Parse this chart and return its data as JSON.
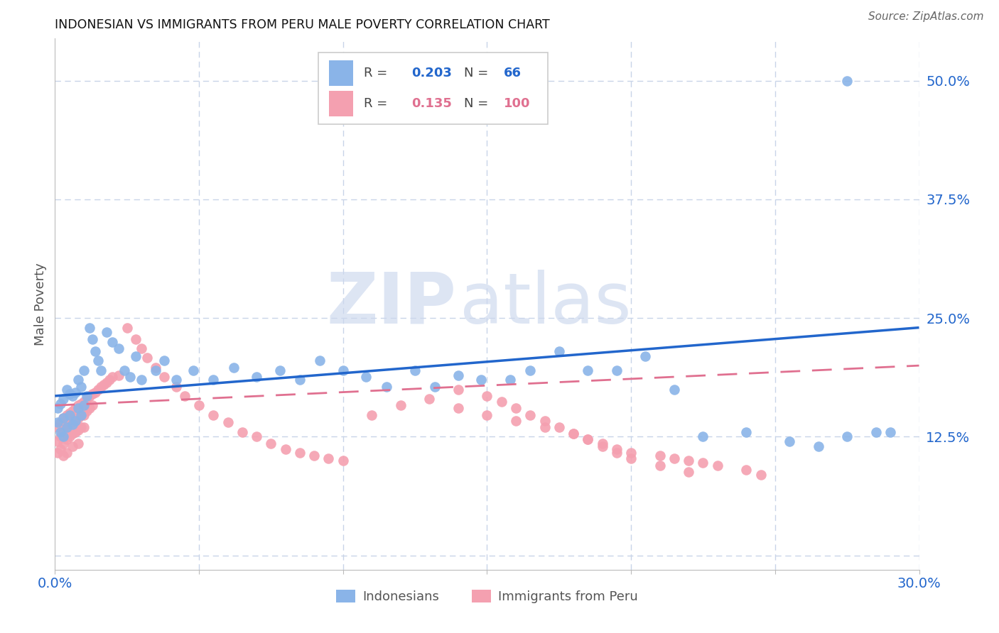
{
  "title": "INDONESIAN VS IMMIGRANTS FROM PERU MALE POVERTY CORRELATION CHART",
  "source": "Source: ZipAtlas.com",
  "ylabel": "Male Poverty",
  "xlim": [
    0.0,
    0.3
  ],
  "ylim": [
    -0.015,
    0.545
  ],
  "indonesian_color": "#8ab4e8",
  "peru_color": "#f4a0b0",
  "indonesian_R": 0.203,
  "indonesian_N": 66,
  "peru_R": 0.135,
  "peru_N": 100,
  "trend_indonesian_color": "#2266cc",
  "trend_peru_color": "#e07090",
  "grid_color": "#c8d4e8",
  "indonesian_x": [
    0.001,
    0.001,
    0.002,
    0.002,
    0.003,
    0.003,
    0.003,
    0.004,
    0.004,
    0.005,
    0.005,
    0.006,
    0.006,
    0.007,
    0.007,
    0.008,
    0.008,
    0.009,
    0.009,
    0.01,
    0.01,
    0.011,
    0.012,
    0.013,
    0.014,
    0.015,
    0.016,
    0.018,
    0.02,
    0.022,
    0.024,
    0.026,
    0.028,
    0.03,
    0.035,
    0.038,
    0.042,
    0.048,
    0.055,
    0.062,
    0.07,
    0.078,
    0.085,
    0.092,
    0.1,
    0.108,
    0.115,
    0.125,
    0.132,
    0.14,
    0.148,
    0.158,
    0.165,
    0.175,
    0.185,
    0.195,
    0.205,
    0.215,
    0.225,
    0.24,
    0.255,
    0.265,
    0.275,
    0.285,
    0.275,
    0.29
  ],
  "indonesian_y": [
    0.155,
    0.14,
    0.16,
    0.13,
    0.165,
    0.145,
    0.125,
    0.175,
    0.135,
    0.17,
    0.148,
    0.168,
    0.138,
    0.172,
    0.142,
    0.185,
    0.155,
    0.178,
    0.148,
    0.195,
    0.158,
    0.168,
    0.24,
    0.228,
    0.215,
    0.205,
    0.195,
    0.235,
    0.225,
    0.218,
    0.195,
    0.188,
    0.21,
    0.185,
    0.195,
    0.205,
    0.185,
    0.195,
    0.185,
    0.198,
    0.188,
    0.195,
    0.185,
    0.205,
    0.195,
    0.188,
    0.178,
    0.195,
    0.178,
    0.19,
    0.185,
    0.185,
    0.195,
    0.215,
    0.195,
    0.195,
    0.21,
    0.175,
    0.125,
    0.13,
    0.12,
    0.115,
    0.125,
    0.13,
    0.5,
    0.13
  ],
  "peru_x": [
    0.001,
    0.001,
    0.001,
    0.002,
    0.002,
    0.002,
    0.003,
    0.003,
    0.003,
    0.003,
    0.004,
    0.004,
    0.004,
    0.004,
    0.005,
    0.005,
    0.005,
    0.006,
    0.006,
    0.006,
    0.006,
    0.007,
    0.007,
    0.007,
    0.008,
    0.008,
    0.008,
    0.008,
    0.009,
    0.009,
    0.009,
    0.01,
    0.01,
    0.01,
    0.011,
    0.011,
    0.012,
    0.012,
    0.013,
    0.013,
    0.014,
    0.015,
    0.016,
    0.017,
    0.018,
    0.019,
    0.02,
    0.022,
    0.025,
    0.028,
    0.03,
    0.032,
    0.035,
    0.038,
    0.042,
    0.045,
    0.05,
    0.055,
    0.06,
    0.065,
    0.07,
    0.075,
    0.08,
    0.085,
    0.09,
    0.095,
    0.1,
    0.11,
    0.12,
    0.13,
    0.14,
    0.15,
    0.16,
    0.17,
    0.18,
    0.185,
    0.19,
    0.195,
    0.2,
    0.21,
    0.215,
    0.22,
    0.225,
    0.23,
    0.24,
    0.245,
    0.14,
    0.15,
    0.155,
    0.16,
    0.165,
    0.17,
    0.175,
    0.18,
    0.185,
    0.19,
    0.195,
    0.2,
    0.21,
    0.22
  ],
  "peru_y": [
    0.135,
    0.12,
    0.108,
    0.14,
    0.125,
    0.112,
    0.145,
    0.132,
    0.118,
    0.105,
    0.148,
    0.135,
    0.122,
    0.108,
    0.15,
    0.138,
    0.125,
    0.152,
    0.14,
    0.128,
    0.115,
    0.155,
    0.142,
    0.13,
    0.158,
    0.145,
    0.132,
    0.118,
    0.16,
    0.148,
    0.135,
    0.162,
    0.148,
    0.135,
    0.165,
    0.152,
    0.168,
    0.155,
    0.17,
    0.158,
    0.172,
    0.175,
    0.178,
    0.18,
    0.182,
    0.185,
    0.188,
    0.19,
    0.24,
    0.228,
    0.218,
    0.208,
    0.198,
    0.188,
    0.178,
    0.168,
    0.158,
    0.148,
    0.14,
    0.13,
    0.125,
    0.118,
    0.112,
    0.108,
    0.105,
    0.102,
    0.1,
    0.148,
    0.158,
    0.165,
    0.155,
    0.148,
    0.142,
    0.135,
    0.128,
    0.122,
    0.118,
    0.112,
    0.108,
    0.105,
    0.102,
    0.1,
    0.098,
    0.095,
    0.09,
    0.085,
    0.175,
    0.168,
    0.162,
    0.155,
    0.148,
    0.142,
    0.135,
    0.128,
    0.122,
    0.115,
    0.108,
    0.102,
    0.095,
    0.088
  ],
  "trend_indo_x0": 0.0,
  "trend_indo_x1": 0.3,
  "trend_indo_y0": 0.168,
  "trend_indo_y1": 0.24,
  "trend_peru_x0": 0.0,
  "trend_peru_x1": 0.3,
  "trend_peru_y0": 0.158,
  "trend_peru_y1": 0.2
}
